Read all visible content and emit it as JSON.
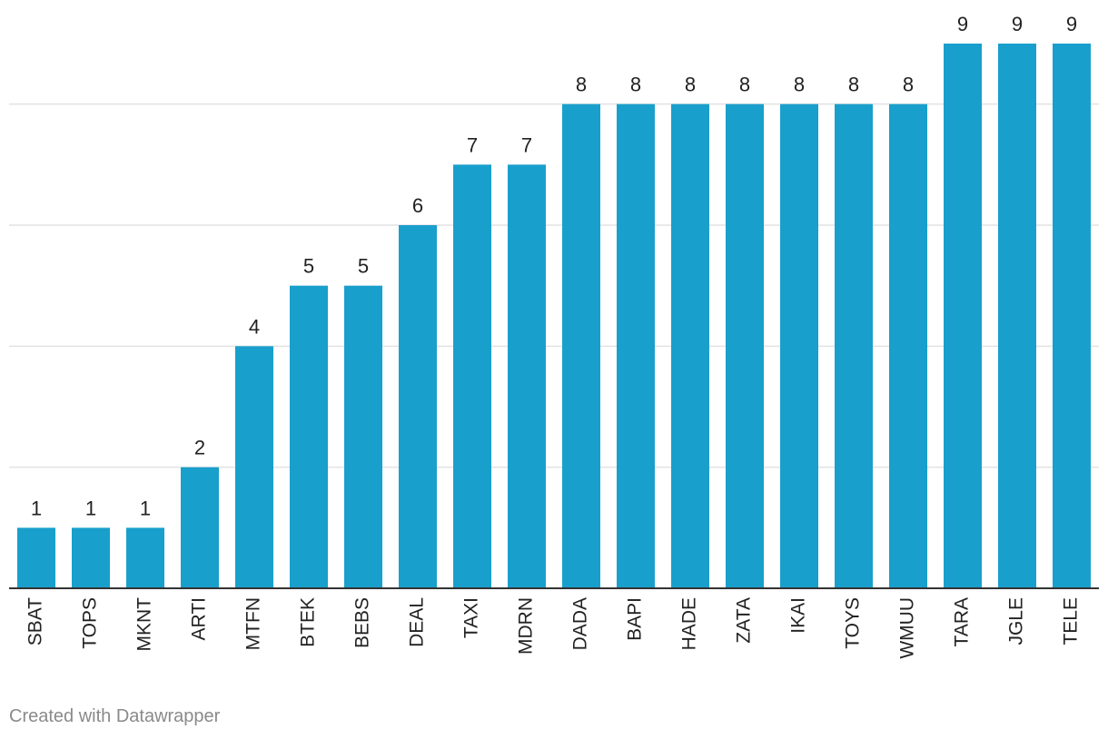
{
  "chart_data": {
    "type": "bar",
    "categories": [
      "SBAT",
      "TOPS",
      "MKNT",
      "ARTI",
      "MTFN",
      "BTEK",
      "BEBS",
      "DEAL",
      "TAXI",
      "MDRN",
      "DADA",
      "BAPI",
      "HADE",
      "ZATA",
      "IKAI",
      "TOYS",
      "WMUU",
      "TARA",
      "JGLE",
      "TELE"
    ],
    "values": [
      1,
      1,
      1,
      2,
      4,
      5,
      5,
      6,
      7,
      7,
      8,
      8,
      8,
      8,
      8,
      8,
      8,
      9,
      9,
      9
    ],
    "title": "",
    "xlabel": "",
    "ylabel": "",
    "ylim": [
      0,
      9
    ],
    "gridlines": [
      2,
      4,
      6,
      8
    ],
    "grid": true,
    "legend": "none",
    "bar_color": "#199fcc",
    "data_labels": true
  },
  "footer": {
    "credit": "Created with Datawrapper"
  }
}
